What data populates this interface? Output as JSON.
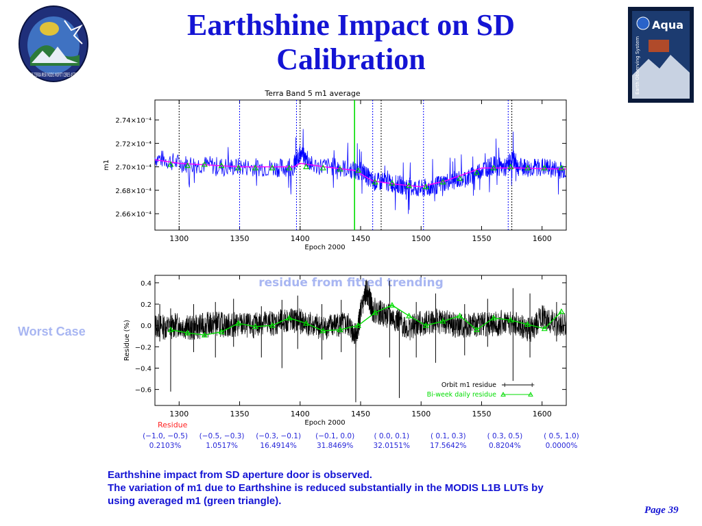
{
  "title": "Earthshine Impact on SD Calibration",
  "logo_left": {
    "icon": "terra-mission-logo",
    "text": "LOS TERRA MISR MODIS MOPITT CERES ASTER"
  },
  "logo_right": {
    "icon": "aqua-mission-logo",
    "text": "Aqua",
    "subtext": "Earth Observing System"
  },
  "chart_data": [
    {
      "type": "line",
      "title": "Terra Band 5 m1 average",
      "xlabel": "Epoch 2000",
      "ylabel": "m1",
      "xlim": [
        1280,
        1620
      ],
      "ylim": [
        0.0002646,
        0.0002757
      ],
      "xticks": [
        1300,
        1350,
        1400,
        1450,
        1500,
        1550,
        1600
      ],
      "yticks": [
        0.000266,
        0.000268,
        0.00027,
        0.000272,
        0.000274
      ],
      "ytick_labels": [
        "2.66×10⁻⁴",
        "2.68×10⁻⁴",
        "2.70×10⁻⁴",
        "2.72×10⁻⁴",
        "2.74×10⁻⁴"
      ],
      "colors": {
        "orbit": "#0000ff",
        "fit": "#ff00ff",
        "average": "#00cc00",
        "event_black": "#000000",
        "event_blue": "#0000ff",
        "event_green": "#00dd00"
      },
      "vertical_lines": [
        {
          "x": 1300,
          "style": "dotted",
          "color": "black"
        },
        {
          "x": 1350,
          "style": "dotted",
          "color": "blue"
        },
        {
          "x": 1397,
          "style": "dotted",
          "color": "blue"
        },
        {
          "x": 1400,
          "style": "dotted",
          "color": "black"
        },
        {
          "x": 1445,
          "style": "solid",
          "color": "green"
        },
        {
          "x": 1460,
          "style": "dotted",
          "color": "blue"
        },
        {
          "x": 1467,
          "style": "dotted",
          "color": "black"
        },
        {
          "x": 1502,
          "style": "dotted",
          "color": "blue"
        },
        {
          "x": 1572,
          "style": "dotted",
          "color": "blue"
        },
        {
          "x": 1575,
          "style": "dotted",
          "color": "black"
        }
      ],
      "series": [
        {
          "kind": "orbit",
          "x": [
            1280,
            1300,
            1320,
            1340,
            1360,
            1380,
            1395,
            1400,
            1410,
            1430,
            1445,
            1452,
            1460,
            1470,
            1480,
            1490,
            1500,
            1510,
            1520,
            1530,
            1540,
            1550,
            1560,
            1570,
            1576,
            1580,
            1590,
            1600,
            1610,
            1620
          ],
          "y": [
            0.0002708,
            0.0002703,
            0.0002702,
            0.00027,
            0.00027,
            0.0002699,
            0.00027,
            0.0002712,
            0.0002701,
            0.00027,
            0.0002697,
            0.0002696,
            0.0002687,
            0.0002687,
            0.0002685,
            0.0002683,
            0.0002681,
            0.0002683,
            0.0002687,
            0.0002689,
            0.0002691,
            0.0002698,
            0.0002701,
            0.0002699,
            0.0002708,
            0.00027,
            0.0002699,
            0.00027,
            0.0002698,
            0.0002697
          ]
        },
        {
          "kind": "fit",
          "x": [
            1280,
            1300,
            1350,
            1395,
            1400,
            1420,
            1445,
            1460,
            1480,
            1500,
            1520,
            1550,
            1580,
            1620
          ],
          "y": [
            0.0002706,
            0.0002703,
            0.00027,
            0.00027,
            0.0002703,
            0.00027,
            0.0002697,
            0.0002688,
            0.0002685,
            0.0002683,
            0.0002688,
            0.0002699,
            0.0002699,
            0.0002698
          ]
        },
        {
          "kind": "average",
          "x": [
            1293,
            1307,
            1321,
            1335,
            1349,
            1363,
            1377,
            1391,
            1405,
            1419,
            1433,
            1448,
            1462,
            1476,
            1490,
            1504,
            1518,
            1532,
            1546,
            1560,
            1574,
            1588,
            1602,
            1616
          ],
          "y": [
            0.0002702,
            0.0002701,
            0.0002702,
            0.0002701,
            0.0002699,
            0.0002699,
            0.0002699,
            0.0002699,
            0.00027,
            0.0002699,
            0.0002698,
            0.0002697,
            0.0002687,
            0.0002686,
            0.0002684,
            0.0002683,
            0.0002687,
            0.000269,
            0.0002695,
            0.0002699,
            0.00027,
            0.0002699,
            0.0002699,
            0.0002699
          ]
        }
      ]
    },
    {
      "type": "line",
      "title": "residue from fitted trending",
      "xlabel": "Epoch 2000",
      "ylabel": "Residue (%)",
      "xlim": [
        1280,
        1620
      ],
      "ylim": [
        -0.75,
        0.47
      ],
      "xticks": [
        1300,
        1350,
        1400,
        1450,
        1500,
        1550,
        1600
      ],
      "yticks": [
        -0.6,
        -0.4,
        -0.2,
        0.0,
        0.2,
        0.4
      ],
      "ytick_labels": [
        "−0.6",
        "−0.4",
        "−0.2",
        "0.0",
        "0.2",
        "0.4"
      ],
      "colors": {
        "orbit": "#000000",
        "biweek": "#00dd00"
      },
      "legend": {
        "position": "bottom-right",
        "entries": [
          "Orbit m1 residue",
          "Bi-week daily residue"
        ]
      },
      "series": [
        {
          "name": "Orbit m1 residue",
          "x": [
            1280,
            1290,
            1300,
            1310,
            1320,
            1330,
            1340,
            1350,
            1360,
            1370,
            1380,
            1390,
            1400,
            1410,
            1420,
            1430,
            1440,
            1447,
            1450,
            1455,
            1460,
            1470,
            1480,
            1490,
            1500,
            1510,
            1520,
            1530,
            1540,
            1550,
            1560,
            1570,
            1580,
            1590,
            1600,
            1610,
            1620
          ],
          "y": [
            0.0,
            -0.02,
            0.01,
            -0.03,
            0.0,
            0.02,
            0.0,
            0.01,
            -0.01,
            0.03,
            0.02,
            0.05,
            0.04,
            0.0,
            -0.02,
            0.01,
            0.0,
            -0.1,
            0.12,
            0.33,
            0.15,
            0.1,
            0.05,
            -0.03,
            0.02,
            0.04,
            0.03,
            -0.01,
            0.0,
            0.02,
            0.01,
            0.03,
            0.0,
            -0.05,
            0.08,
            0.02,
            0.01
          ],
          "spikes": [
            {
              "x": 1284,
              "low": -0.15,
              "high": 0.2
            },
            {
              "x": 1293,
              "low": -0.62,
              "high": 0.16
            },
            {
              "x": 1312,
              "low": -0.25,
              "high": 0.2
            },
            {
              "x": 1330,
              "low": -0.3,
              "high": 0.22
            },
            {
              "x": 1345,
              "low": -0.2,
              "high": 0.25
            },
            {
              "x": 1368,
              "low": -0.3,
              "high": 0.18
            },
            {
              "x": 1385,
              "low": -0.4,
              "high": 0.24
            },
            {
              "x": 1398,
              "low": -0.22,
              "high": 0.28
            },
            {
              "x": 1418,
              "low": -0.32,
              "high": 0.2
            },
            {
              "x": 1434,
              "low": -0.25,
              "high": 0.24
            },
            {
              "x": 1446,
              "low": -0.72,
              "high": 0.02
            },
            {
              "x": 1474,
              "low": -0.3,
              "high": 0.42
            },
            {
              "x": 1482,
              "low": -0.68,
              "high": 0.15
            },
            {
              "x": 1496,
              "low": -0.3,
              "high": 0.22
            },
            {
              "x": 1512,
              "low": -0.35,
              "high": 0.3
            },
            {
              "x": 1536,
              "low": -0.28,
              "high": 0.2
            },
            {
              "x": 1555,
              "low": -0.2,
              "high": 0.25
            },
            {
              "x": 1576,
              "low": -0.52,
              "high": 0.35
            },
            {
              "x": 1590,
              "low": -0.3,
              "high": 0.3
            },
            {
              "x": 1612,
              "low": -0.15,
              "high": 0.22
            }
          ]
        },
        {
          "name": "Bi-week daily residue",
          "x": [
            1293,
            1307,
            1321,
            1335,
            1349,
            1363,
            1377,
            1391,
            1405,
            1419,
            1433,
            1448,
            1462,
            1476,
            1490,
            1504,
            1518,
            1532,
            1546,
            1560,
            1574,
            1588,
            1602,
            1616
          ],
          "y": [
            -0.04,
            -0.07,
            -0.09,
            -0.06,
            0.02,
            -0.01,
            0.0,
            0.07,
            0.02,
            -0.05,
            -0.04,
            0.0,
            0.12,
            0.19,
            0.09,
            0.0,
            0.04,
            0.09,
            -0.04,
            0.07,
            0.05,
            0.01,
            -0.03,
            0.13
          ]
        }
      ]
    }
  ],
  "worst_case_label": "Worst Case",
  "residue_header": "Residue",
  "residue_bins": [
    {
      "range": "(−1.0, −0.5)",
      "percent": "0.2103%"
    },
    {
      "range": "(−0.5, −0.3)",
      "percent": "1.0517%"
    },
    {
      "range": "(−0.3, −0.1)",
      "percent": "16.4914%"
    },
    {
      "range": "(−0.1, 0.0)",
      "percent": "31.8469%"
    },
    {
      "range": "( 0.0, 0.1)",
      "percent": "32.0151%"
    },
    {
      "range": "( 0.1, 0.3)",
      "percent": "17.5642%"
    },
    {
      "range": "( 0.3, 0.5)",
      "percent": "0.8204%"
    },
    {
      "range": "( 0.5, 1.0)",
      "percent": "0.0000%"
    }
  ],
  "body_lines": [
    "Earthshine impact from SD aperture door is observed.",
    "The variation of m1 due to Earthshine is reduced substantially in the MODIS L1B LUTs by",
    "using averaged m1 (green triangle)."
  ],
  "page_label": "Page 39"
}
